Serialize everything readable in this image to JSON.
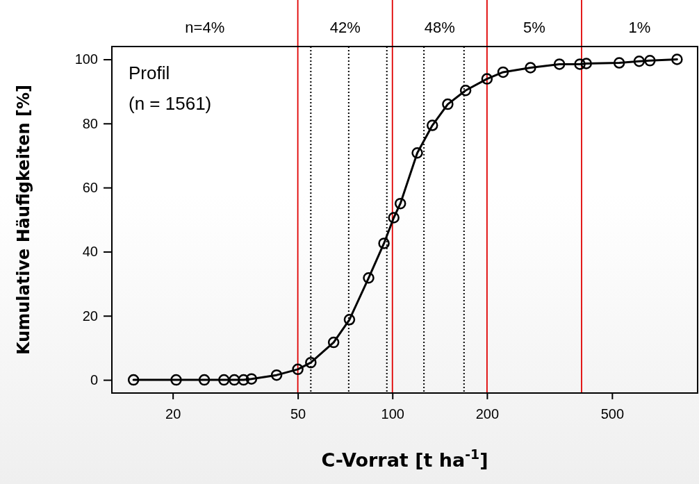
{
  "chart_data": {
    "type": "line",
    "xlabel": "C-Vorrat [t ha$^{-1}$]",
    "ylabel": "Kumulative Häufigkeiten [%]",
    "log": "x",
    "xlim": [
      12.8,
      936
    ],
    "xticks": [
      20,
      50,
      100,
      200,
      500
    ],
    "ylim": [
      -4.1,
      104
    ],
    "yticks": [
      0,
      20,
      40,
      60,
      80,
      100
    ],
    "marker": "circle",
    "line_style": "solid",
    "grid": false,
    "series": [
      {
        "color": "#000000",
        "x": [
          15,
          20.5,
          25.2,
          29.1,
          31.4,
          33.6,
          35.6,
          42.8,
          50,
          55,
          65,
          73,
          84,
          94,
          101,
          106,
          120,
          134,
          150,
          171,
          200,
          225,
          275,
          340,
          395,
          414,
          527,
          610,
          660,
          805
        ],
        "values": [
          0,
          0,
          0,
          0,
          0,
          0,
          0.3,
          1.5,
          3.3,
          5.4,
          11.7,
          18.8,
          31.8,
          42.6,
          50.6,
          55,
          70.8,
          79.4,
          86,
          90.3,
          93.9,
          96,
          97.4,
          98.5,
          98.5,
          98.7,
          98.9,
          99.4,
          99.6,
          100
        ]
      }
    ],
    "ref_lines": [
      {
        "axis": "x",
        "value": 50,
        "color": "#e00000",
        "line_style": "solid"
      },
      {
        "axis": "x",
        "value": 100,
        "color": "#e00000",
        "line_style": "solid"
      },
      {
        "axis": "x",
        "value": 200,
        "color": "#e00000",
        "line_style": "solid"
      },
      {
        "axis": "x",
        "value": 400,
        "color": "#e00000",
        "line_style": "solid"
      },
      {
        "axis": "x",
        "value": 55,
        "color": "#000000",
        "line_style": "dotted"
      },
      {
        "axis": "x",
        "value": 72.6,
        "color": "#000000",
        "line_style": "dotted"
      },
      {
        "axis": "x",
        "value": 96,
        "color": "#000000",
        "line_style": "dotted"
      },
      {
        "axis": "x",
        "value": 126,
        "color": "#000000",
        "line_style": "dotted"
      },
      {
        "axis": "x",
        "value": 169,
        "color": "#000000",
        "line_style": "dotted"
      }
    ],
    "annotations": [
      "n=4%",
      "42%",
      "48%",
      "5%",
      "1%",
      "Profil\n(n = 1561)"
    ]
  }
}
